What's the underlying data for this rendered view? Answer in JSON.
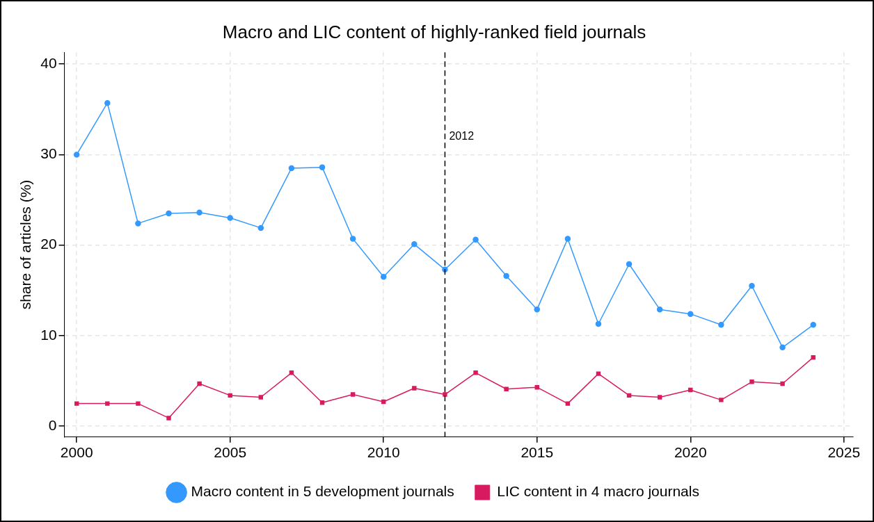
{
  "chart_data": {
    "type": "line",
    "title": "Macro and LIC content of highly-ranked field journals",
    "ylabel": "share of articles (%)",
    "x": [
      2000,
      2001,
      2002,
      2003,
      2004,
      2005,
      2006,
      2007,
      2008,
      2009,
      2010,
      2011,
      2012,
      2013,
      2014,
      2015,
      2016,
      2017,
      2018,
      2019,
      2020,
      2021,
      2022,
      2023,
      2024
    ],
    "series": [
      {
        "name": "Macro content in 5 development journals",
        "color": "#3399ff",
        "marker": "circle",
        "values": [
          30.0,
          35.7,
          22.4,
          23.5,
          23.6,
          23.0,
          21.9,
          28.5,
          28.6,
          20.7,
          16.5,
          20.1,
          17.3,
          20.6,
          16.6,
          12.9,
          20.7,
          11.3,
          17.9,
          12.9,
          12.4,
          11.2,
          15.5,
          8.7,
          11.2
        ]
      },
      {
        "name": "LIC content in 4 macro journals",
        "color": "#d81b60",
        "marker": "square",
        "values": [
          2.5,
          2.5,
          2.5,
          0.9,
          4.7,
          3.4,
          3.2,
          5.9,
          2.6,
          3.5,
          2.7,
          4.2,
          3.5,
          5.9,
          4.1,
          4.3,
          2.5,
          5.8,
          3.4,
          3.2,
          4.0,
          2.9,
          4.9,
          4.7,
          7.6
        ]
      }
    ],
    "xlim": [
      1999.6,
      2025.3
    ],
    "xticks": [
      2000,
      2005,
      2010,
      2015,
      2020,
      2025
    ],
    "ylim": [
      -1.2,
      41.3
    ],
    "yticks": [
      0,
      10,
      20,
      30,
      40
    ],
    "ref_lines": [
      {
        "axis": "x",
        "value": 2012,
        "label": "2012",
        "color": "#000000",
        "line_style": "dashed"
      }
    ],
    "grid": true,
    "legend": "bottom",
    "line_style": "solid"
  }
}
